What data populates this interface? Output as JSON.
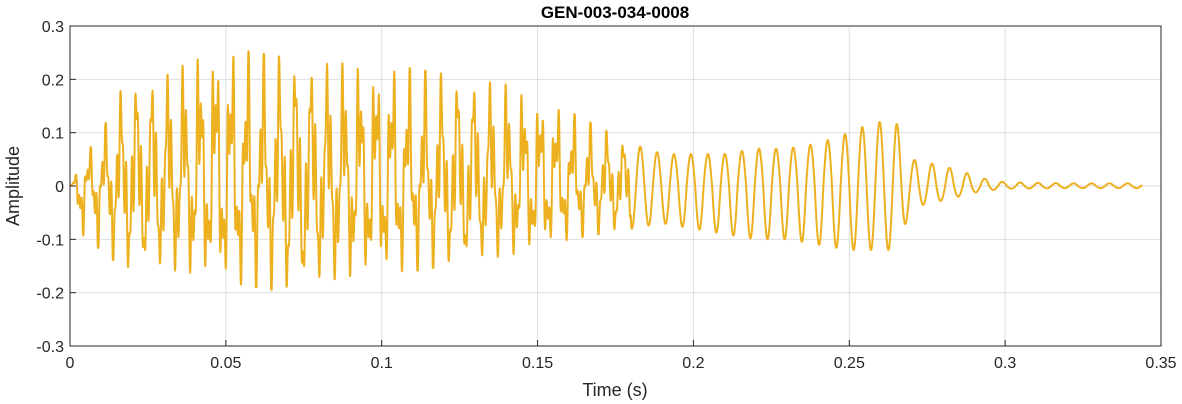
{
  "chart_data": {
    "type": "line",
    "title": "GEN-003-034-0008",
    "xlabel": "Time (s)",
    "ylabel": "Amplitude",
    "xlim": [
      0,
      0.35
    ],
    "ylim": [
      -0.3,
      0.3
    ],
    "xticks": [
      0,
      0.05,
      0.1,
      0.15,
      0.2,
      0.25,
      0.3,
      0.35
    ],
    "xtick_labels": [
      "0",
      "0.05",
      "0.1",
      "0.15",
      "0.2",
      "0.25",
      "0.3",
      "0.35"
    ],
    "yticks": [
      -0.3,
      -0.2,
      -0.1,
      0,
      0.1,
      0.2,
      0.3
    ],
    "ytick_labels": [
      "-0.3",
      "-0.2",
      "-0.1",
      "0",
      "0.1",
      "0.2",
      "0.3"
    ],
    "grid": true,
    "series_color": "#EDB120",
    "envelope": {
      "t": [
        0,
        0.005,
        0.01,
        0.018,
        0.025,
        0.035,
        0.045,
        0.05,
        0.06,
        0.07,
        0.08,
        0.09,
        0.1,
        0.11,
        0.12,
        0.13,
        0.14,
        0.15,
        0.16,
        0.17,
        0.18,
        0.19,
        0.2,
        0.21,
        0.22,
        0.23,
        0.24,
        0.25,
        0.258,
        0.265,
        0.27,
        0.278,
        0.285,
        0.292,
        0.3,
        0.32,
        0.344
      ],
      "upper": [
        0.0,
        0.06,
        0.1,
        0.2,
        0.2,
        0.22,
        0.27,
        0.26,
        0.25,
        0.24,
        0.23,
        0.23,
        0.23,
        0.22,
        0.21,
        0.2,
        0.19,
        0.17,
        0.14,
        0.11,
        0.08,
        0.06,
        0.06,
        0.06,
        0.07,
        0.07,
        0.08,
        0.1,
        0.12,
        0.12,
        0.05,
        0.04,
        0.03,
        0.015,
        0.007,
        0.005,
        0.005
      ],
      "lower": [
        -0.05,
        -0.1,
        -0.12,
        -0.16,
        -0.15,
        -0.16,
        -0.17,
        -0.18,
        -0.19,
        -0.2,
        -0.18,
        -0.17,
        -0.16,
        -0.16,
        -0.15,
        -0.14,
        -0.13,
        -0.12,
        -0.1,
        -0.09,
        -0.08,
        -0.07,
        -0.08,
        -0.09,
        -0.1,
        -0.1,
        -0.11,
        -0.12,
        -0.12,
        -0.12,
        -0.04,
        -0.03,
        -0.02,
        -0.01,
        -0.005,
        -0.004,
        -0.004
      ]
    },
    "t_end": 0.344
  }
}
